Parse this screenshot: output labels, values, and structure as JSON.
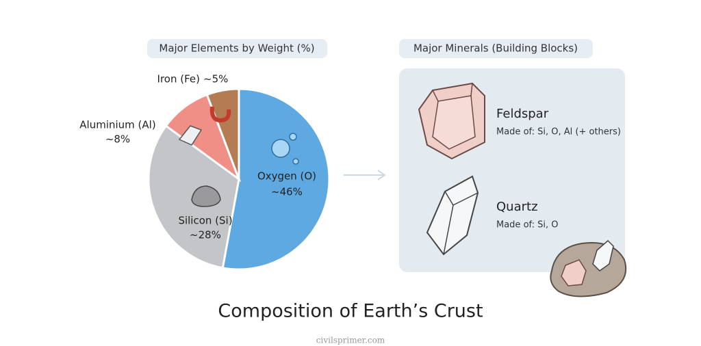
{
  "chart_data": {
    "type": "pie",
    "title": "Composition of Earth’s Crust",
    "subtitle": "Major Elements by Weight (%)",
    "categories": [
      "Oxygen (O)",
      "Silicon (Si)",
      "Aluminium (Al)",
      "Iron (Fe)"
    ],
    "values": [
      46,
      28,
      8,
      5
    ],
    "value_labels": [
      "~46%",
      "~28%",
      "~8%",
      "~5%"
    ],
    "colors": [
      "#5ea9e2",
      "#c4c5c9",
      "#ef8f85",
      "#b37c52"
    ]
  },
  "minerals": {
    "title": "Major Minerals (Building Blocks)",
    "items": [
      {
        "name": "Feldspar",
        "description": "Made of: Si, O, Al (+ others)"
      },
      {
        "name": "Quartz",
        "description": "Made of: Si, O"
      }
    ]
  },
  "footer": "civilsprimer.com"
}
